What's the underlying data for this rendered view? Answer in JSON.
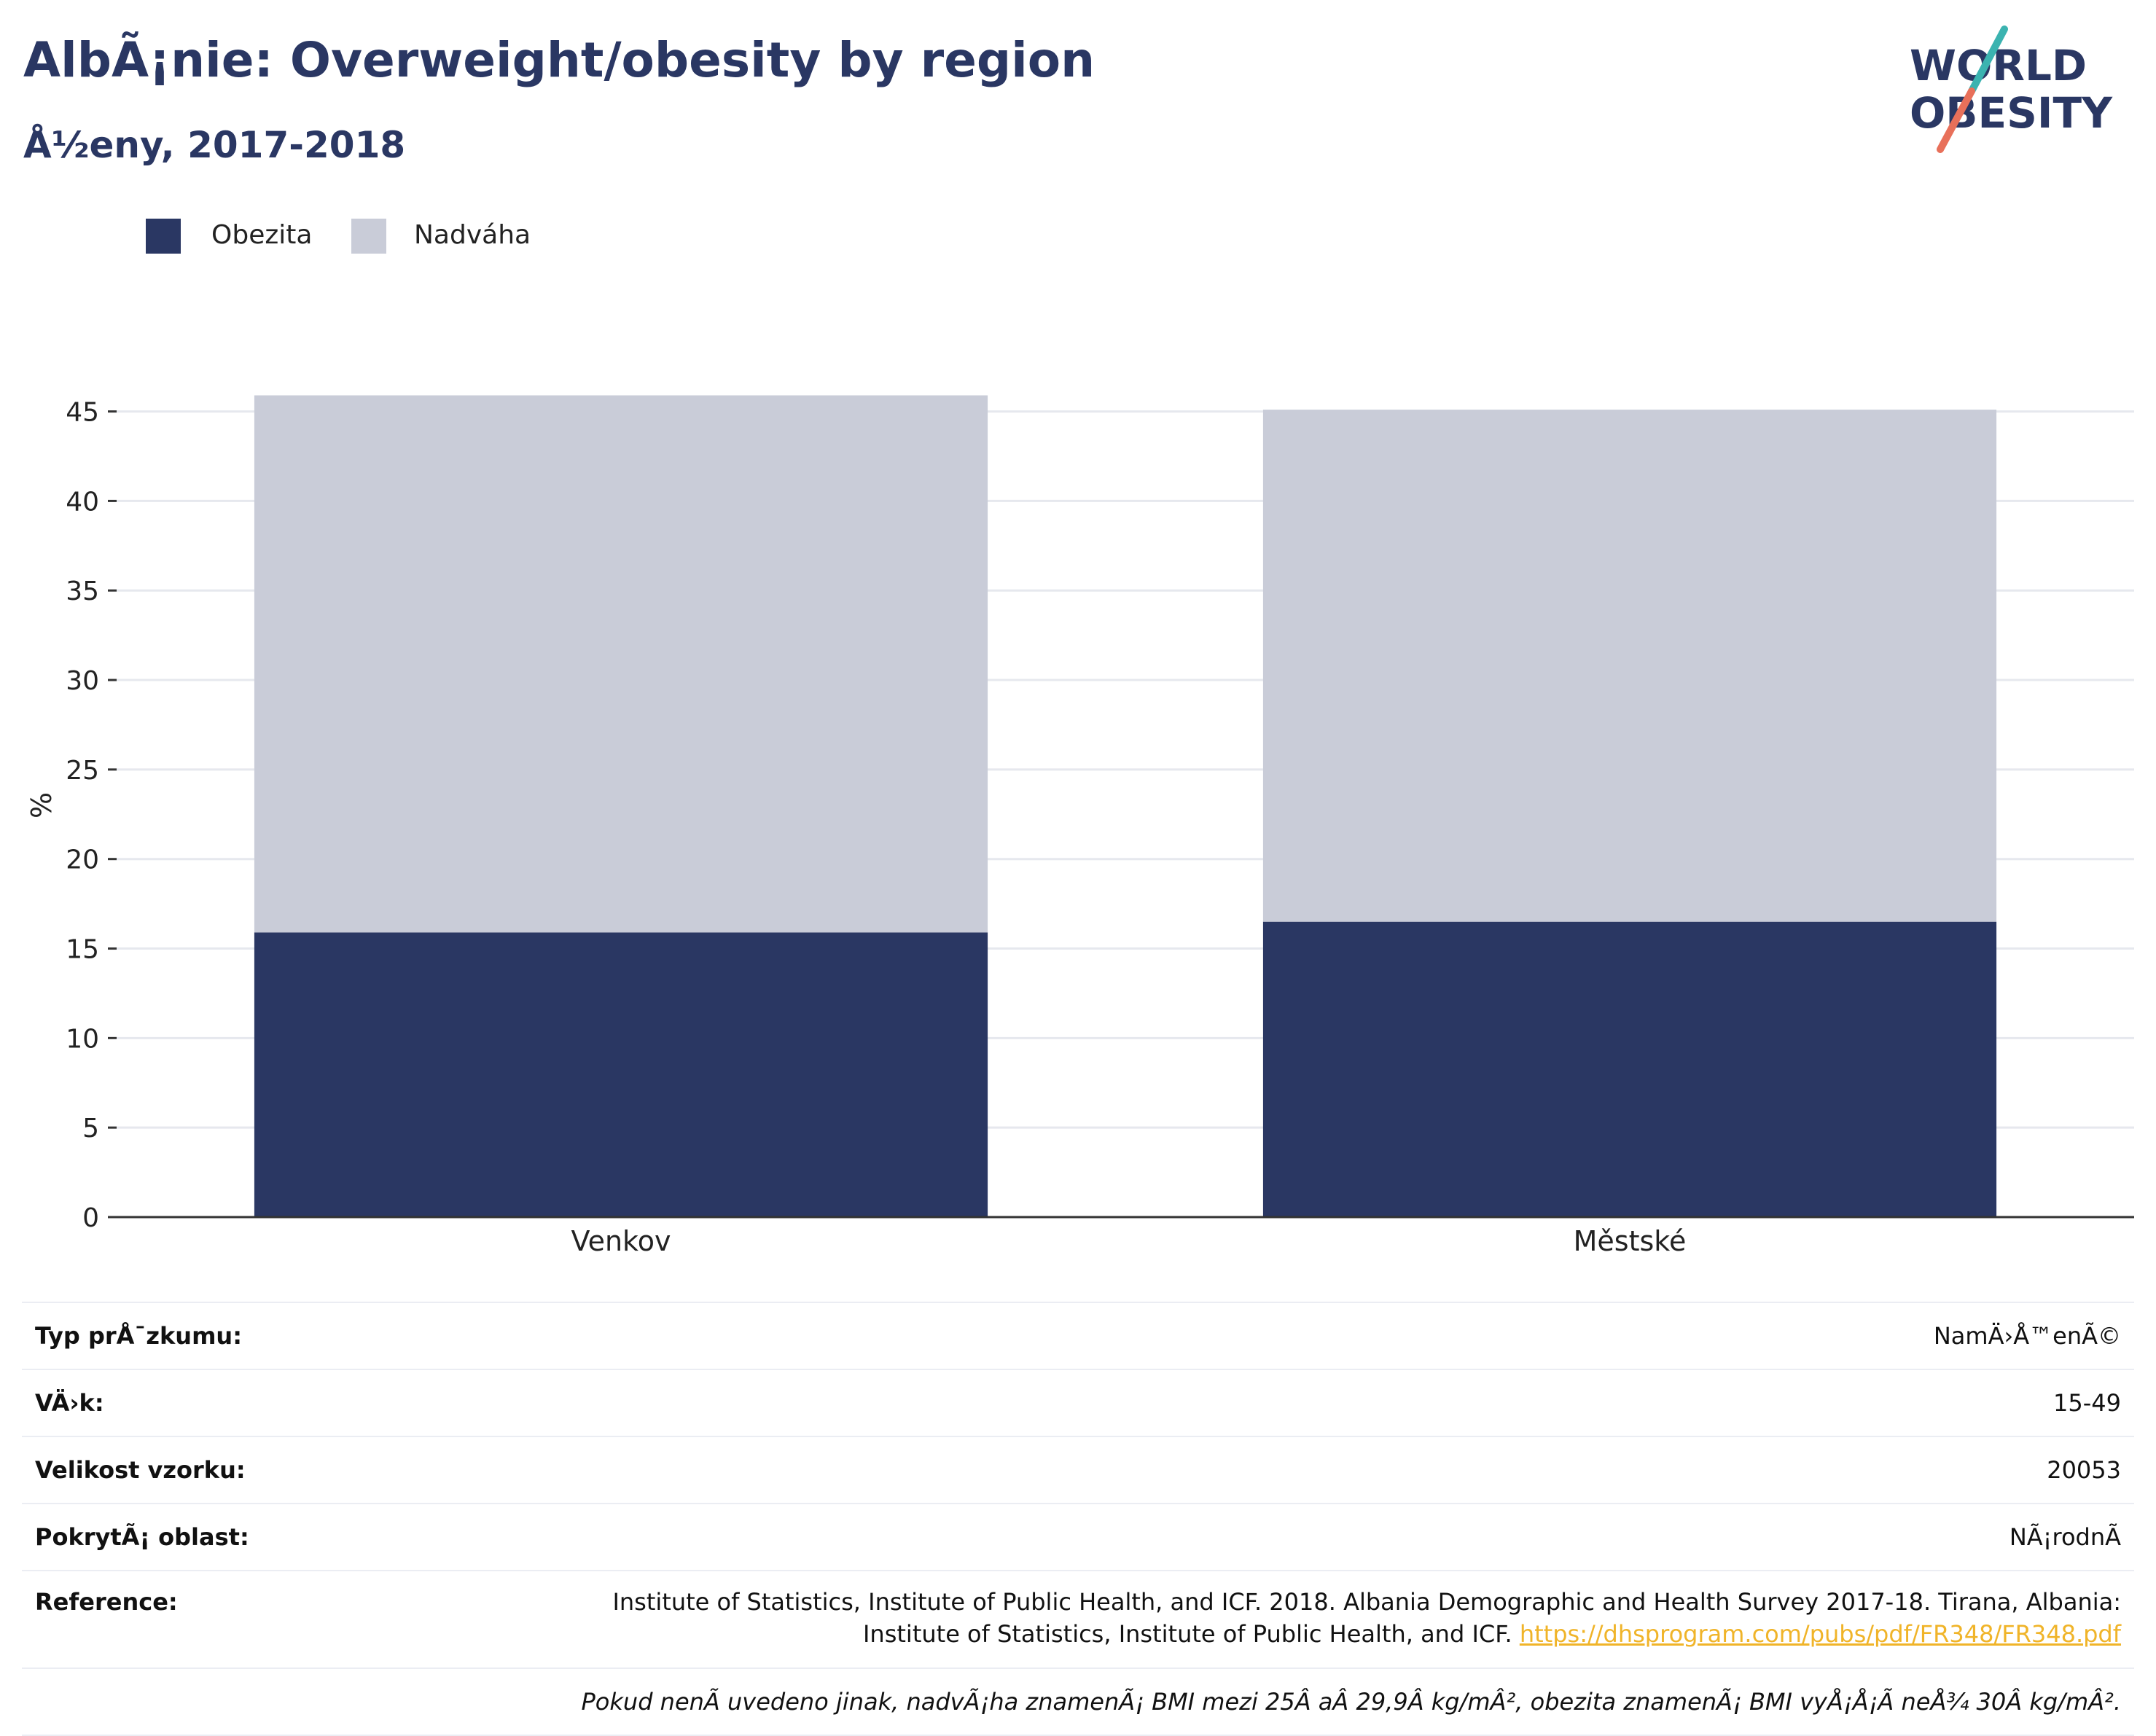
{
  "header": {
    "title": "AlbÃ¡nie: Overweight/obesity by region",
    "subtitle": "Å½eny, 2017-2018"
  },
  "logo": {
    "line1": "WORLD",
    "line2": "OBESITY",
    "colors": {
      "text": "#2a3763",
      "slash_top": "#3bb3b0",
      "slash_bottom": "#e8705a"
    }
  },
  "legend": {
    "items": [
      {
        "label": "Obezita",
        "color": "#2a3763"
      },
      {
        "label": "Nadváha",
        "color": "#c9ccd8"
      }
    ]
  },
  "chart_data": {
    "type": "bar",
    "stacked": true,
    "categories": [
      "Venkov",
      "Městské"
    ],
    "series": [
      {
        "name": "Obezita",
        "color": "#2a3763",
        "values": [
          15.9,
          16.5
        ]
      },
      {
        "name": "Nadváha",
        "color": "#c9ccd8",
        "values": [
          30.0,
          28.6
        ]
      }
    ],
    "xlabel": "",
    "ylabel": "%",
    "ylim": [
      0,
      46
    ],
    "yticks": [
      0,
      5,
      10,
      15,
      20,
      25,
      30,
      35,
      40,
      45
    ],
    "grid": true,
    "legend_position": "top-left"
  },
  "info": {
    "rows": [
      {
        "label": "Typ prÅ¯zkumu:",
        "value": "NamÄ›Å™enÃ©"
      },
      {
        "label": "VÄ›k:",
        "value": "15-49"
      },
      {
        "label": "Velikost vzorku:",
        "value": "20053"
      },
      {
        "label": "PokrytÃ¡ oblast:",
        "value": "NÃ¡rodnÃ"
      }
    ],
    "reference": {
      "label": "Reference:",
      "text": "Institute of Statistics, Institute of Public Health, and ICF. 2018. Albania Demographic and Health Survey 2017-18. Tirana, Albania: Institute of Statistics, Institute of Public Health, and ICF.",
      "link": "https://dhsprogram.com/pubs/pdf/FR348/FR348.pdf",
      "link_color": "#f0b429"
    },
    "note": "Pokud nenÃ uvedeno jinak, nadvÃ¡ha znamenÃ¡ BMI mezi 25Â aÂ 29,9Â kg/mÂ², obezita znamenÃ¡ BMI vyÅ¡Å¡Ã neÅ¾ 30Â kg/mÂ²."
  }
}
